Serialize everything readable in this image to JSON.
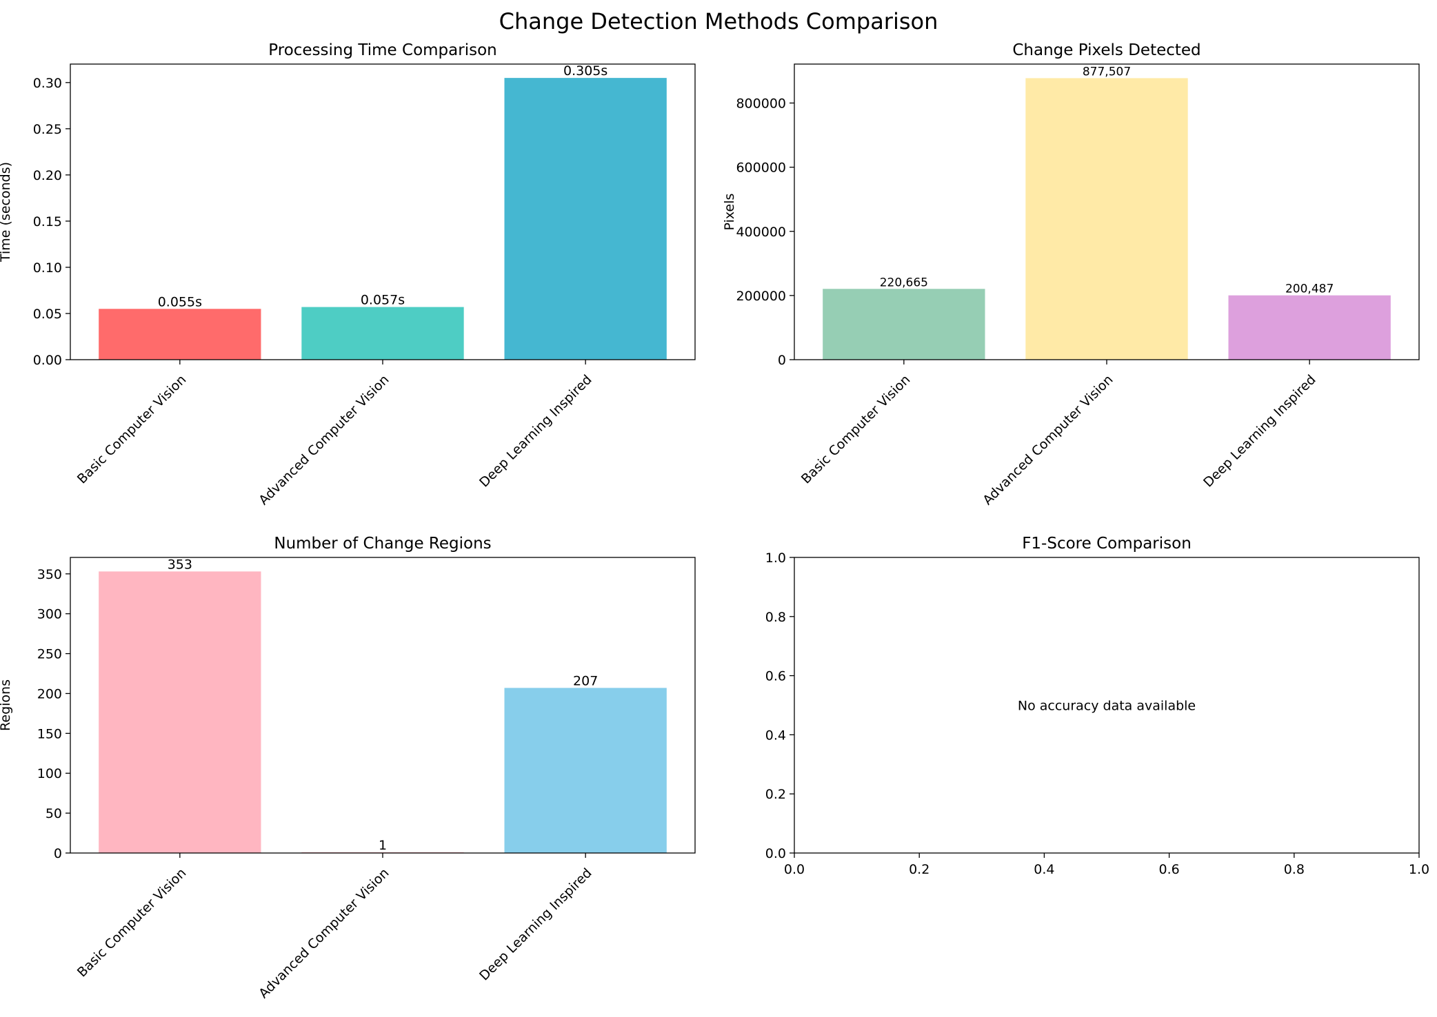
{
  "figure": {
    "suptitle": "Change Detection Methods Comparison"
  },
  "chart_data": [
    {
      "type": "bar",
      "title": "Processing Time Comparison",
      "xlabel": "",
      "ylabel": "Time (seconds)",
      "categories": [
        "Basic Computer Vision",
        "Advanced Computer Vision",
        "Deep Learning Inspired"
      ],
      "values": [
        0.055,
        0.057,
        0.305
      ],
      "data_labels": [
        "0.055s",
        "0.057s",
        "0.305s"
      ],
      "colors": [
        "#ff6b6b",
        "#4ecdc4",
        "#45b7d1"
      ],
      "ylim": [
        0,
        0.32
      ],
      "yticks": [
        0.0,
        0.05,
        0.1,
        0.15,
        0.2,
        0.25,
        0.3
      ],
      "ytick_labels": [
        "0.00",
        "0.05",
        "0.10",
        "0.15",
        "0.20",
        "0.25",
        "0.30"
      ],
      "grid": false
    },
    {
      "type": "bar",
      "title": "Change Pixels Detected",
      "xlabel": "",
      "ylabel": "Pixels",
      "categories": [
        "Basic Computer Vision",
        "Advanced Computer Vision",
        "Deep Learning Inspired"
      ],
      "values": [
        220665,
        877507,
        200487
      ],
      "data_labels": [
        "220,665",
        "877,507",
        "200,487"
      ],
      "colors": [
        "#96ceb4",
        "#ffeaa7",
        "#dda0dd"
      ],
      "ylim": [
        0,
        921382
      ],
      "yticks": [
        0,
        200000,
        400000,
        600000,
        800000
      ],
      "ytick_labels": [
        "0",
        "200000",
        "400000",
        "600000",
        "800000"
      ],
      "grid": false
    },
    {
      "type": "bar",
      "title": "Number of Change Regions",
      "xlabel": "",
      "ylabel": "Regions",
      "categories": [
        "Basic Computer Vision",
        "Advanced Computer Vision",
        "Deep Learning Inspired"
      ],
      "values": [
        353,
        1,
        207
      ],
      "data_labels": [
        "353",
        "1",
        "207"
      ],
      "colors": [
        "#ffb6c1",
        "#ffb6c1",
        "#87ceeb"
      ],
      "ylim": [
        0,
        370.6
      ],
      "yticks": [
        0,
        50,
        100,
        150,
        200,
        250,
        300,
        350
      ],
      "ytick_labels": [
        "0",
        "50",
        "100",
        "150",
        "200",
        "250",
        "300",
        "350"
      ],
      "grid": false
    },
    {
      "type": "bar",
      "title": "F1-Score Comparison",
      "xlabel": "",
      "ylabel": "",
      "categories": [],
      "values": [],
      "annotation": "No accuracy data available",
      "xlim": [
        0,
        1
      ],
      "ylim": [
        0,
        1
      ],
      "xticks": [
        0.0,
        0.2,
        0.4,
        0.6,
        0.8,
        1.0
      ],
      "xtick_labels": [
        "0.0",
        "0.2",
        "0.4",
        "0.6",
        "0.8",
        "1.0"
      ],
      "yticks": [
        0.0,
        0.2,
        0.4,
        0.6,
        0.8,
        1.0
      ],
      "ytick_labels": [
        "0.0",
        "0.2",
        "0.4",
        "0.6",
        "0.8",
        "1.0"
      ],
      "grid": false
    }
  ]
}
